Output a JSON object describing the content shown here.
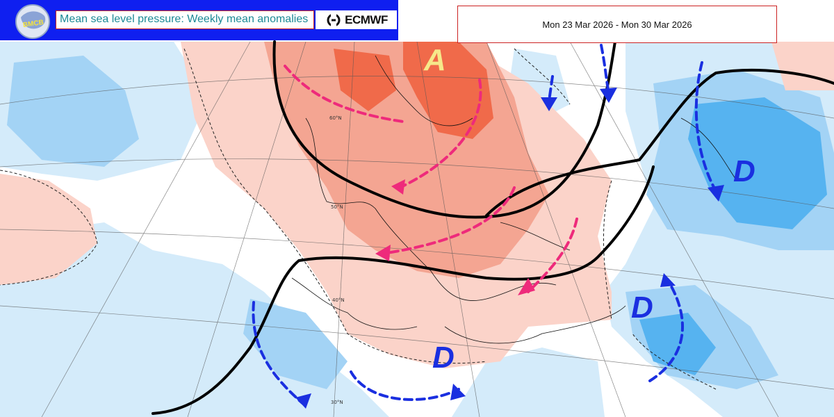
{
  "header": {
    "logo_text": "BMCB",
    "title": "Mean sea level pressure: Weekly mean anomalies",
    "brand": "ECMWF",
    "date_range": "Mon 23 Mar 2026 - Mon 30 Mar 2026"
  },
  "annotations": {
    "high_label": "A",
    "low_labels": [
      "D",
      "D",
      "D"
    ]
  },
  "latitude_labels": [
    "60°N",
    "50°N",
    "40°N",
    "30°N"
  ],
  "colors": {
    "header_blue": "#0f1ff0",
    "title_teal": "#1c8a96",
    "frame_red": "#cc2222",
    "anomaly_strong_positive": "#f06a4a",
    "anomaly_positive": "#f4a592",
    "anomaly_weak_positive": "#fbd3c9",
    "anomaly_weak_negative": "#d4ebfa",
    "anomaly_negative": "#a3d3f5",
    "anomaly_strong_negative": "#56b3f0",
    "high_arrow": "#ee2a7b",
    "low_arrow": "#1a2fe0",
    "high_letter": "#f6e88a",
    "low_letter": "#1a2fe0",
    "ridge_line": "#000000"
  }
}
